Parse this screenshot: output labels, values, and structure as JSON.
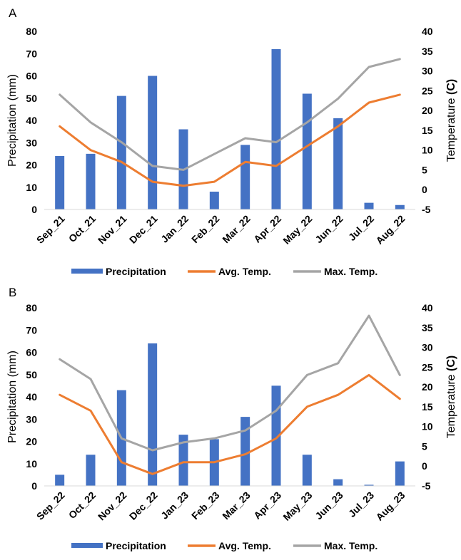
{
  "chart_data": [
    {
      "panel_label": "A",
      "type": "bar+line",
      "categories": [
        "Sep_21",
        "Oct_21",
        "Nov_21",
        "Dec_21",
        "Jan_22",
        "Feb_22",
        "Mar_22",
        "Apr_22",
        "May_22",
        "Jun_22",
        "Jul_22",
        "Aug_22"
      ],
      "bar_series": {
        "name": "Precipitation",
        "values": [
          24,
          25,
          51,
          60,
          36,
          8,
          29,
          72,
          52,
          41,
          3,
          2
        ]
      },
      "line_series": [
        {
          "name": "Avg. Temp.",
          "values": [
            16,
            10,
            7,
            2,
            1,
            2,
            7,
            6,
            11,
            16,
            22,
            24
          ]
        },
        {
          "name": "Max. Temp.",
          "values": [
            24,
            17,
            12,
            6,
            5,
            9,
            13,
            12,
            17,
            23,
            31,
            33
          ]
        }
      ],
      "ylabel_left": "Precipitation (mm)",
      "ylabel_right_main": "Temperature ",
      "ylabel_right_unit": "(C)",
      "ylim_left": [
        0,
        80
      ],
      "yticks_left": [
        "0",
        "10",
        "20",
        "30",
        "40",
        "50",
        "60",
        "70",
        "80"
      ],
      "ylim_right": [
        -5,
        40
      ],
      "yticks_right": [
        "-5",
        "0",
        "5",
        "10",
        "15",
        "20",
        "25",
        "30",
        "35",
        "40"
      ],
      "grid": false,
      "legend_position": "bottom"
    },
    {
      "panel_label": "B",
      "type": "bar+line",
      "categories": [
        "Sep_22",
        "Oct_22",
        "Nov_22",
        "Dec_22",
        "Jan_23",
        "Feb_23",
        "Mar_23",
        "Apr_23",
        "May_23",
        "Jun_23",
        "Jul_23",
        "Aug_23"
      ],
      "bar_series": {
        "name": "Precipitation",
        "values": [
          5,
          14,
          43,
          64,
          23,
          21,
          31,
          45,
          14,
          3,
          0.5,
          11
        ]
      },
      "line_series": [
        {
          "name": "Avg. Temp.",
          "values": [
            18,
            14,
            1,
            -2,
            1,
            1,
            3,
            7,
            15,
            18,
            23,
            17
          ]
        },
        {
          "name": "Max. Temp.",
          "values": [
            27,
            22,
            7,
            4,
            6,
            7,
            9,
            14,
            23,
            26,
            38,
            23
          ]
        }
      ],
      "ylabel_left": "Precipitation (mm)",
      "ylabel_right_main": "Temperature ",
      "ylabel_right_unit": "(C)",
      "ylim_left": [
        0,
        80
      ],
      "yticks_left": [
        "0",
        "10",
        "20",
        "30",
        "40",
        "50",
        "60",
        "70",
        "80"
      ],
      "ylim_right": [
        -5,
        40
      ],
      "yticks_right": [
        "-5",
        "0",
        "5",
        "10",
        "15",
        "20",
        "25",
        "30",
        "35",
        "40"
      ],
      "grid": false,
      "legend_position": "bottom"
    }
  ],
  "colors": {
    "precipitation": "#4472C4",
    "avg_temp": "#ED7D31",
    "max_temp": "#A5A5A5",
    "axis": "#D9D9D9"
  }
}
